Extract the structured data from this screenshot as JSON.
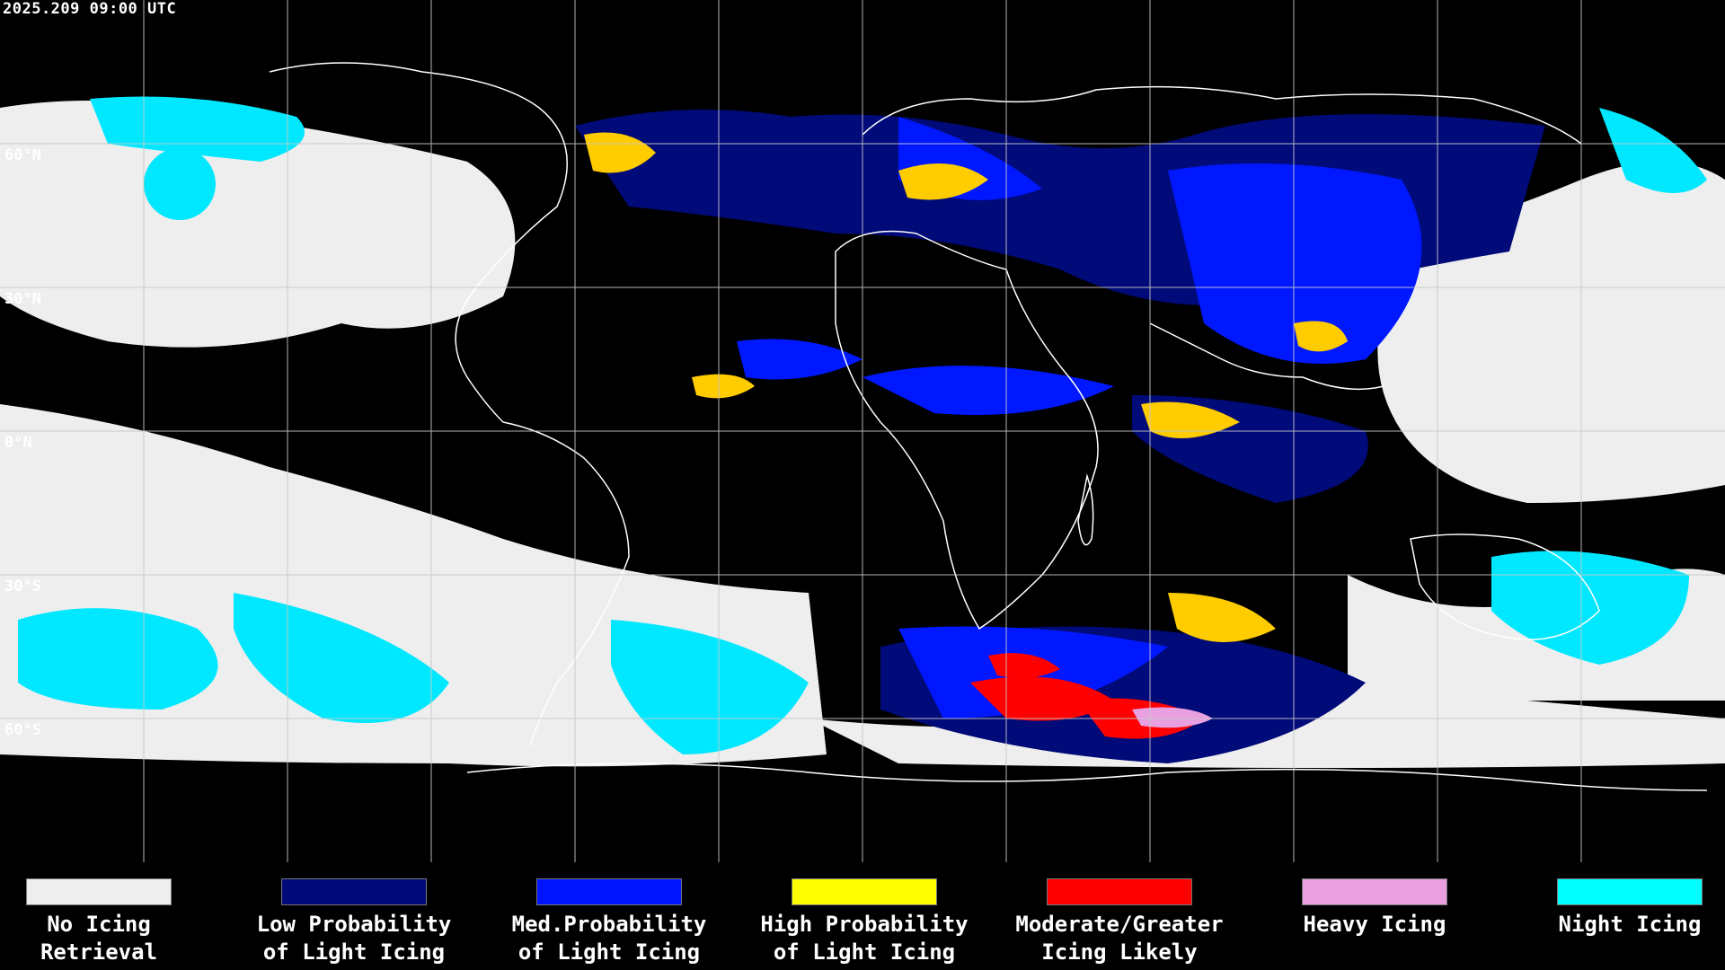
{
  "timestamp": "2025.209 09:00 UTC",
  "lat_labels": [
    "60°N",
    "30°N",
    "0°N",
    "30°S",
    "60°S"
  ],
  "legend": [
    {
      "label": "No Icing\nRetrieval",
      "color": "#eeeeee"
    },
    {
      "label": "Low Probability\nof Light Icing",
      "color": "#000a78"
    },
    {
      "label": "Med.Probability\nof Light Icing",
      "color": "#0014ff"
    },
    {
      "label": "High Probability\nof Light Icing",
      "color": "#ffff00"
    },
    {
      "label": "Moderate/Greater\nIcing Likely",
      "color": "#ff0000"
    },
    {
      "label": "Heavy Icing",
      "color": "#e8a0e0"
    },
    {
      "label": "Night Icing",
      "color": "#00ffff"
    }
  ],
  "colors": {
    "background": "#000000",
    "grid": "#c8c8c8",
    "coastline": "#ffffff"
  }
}
